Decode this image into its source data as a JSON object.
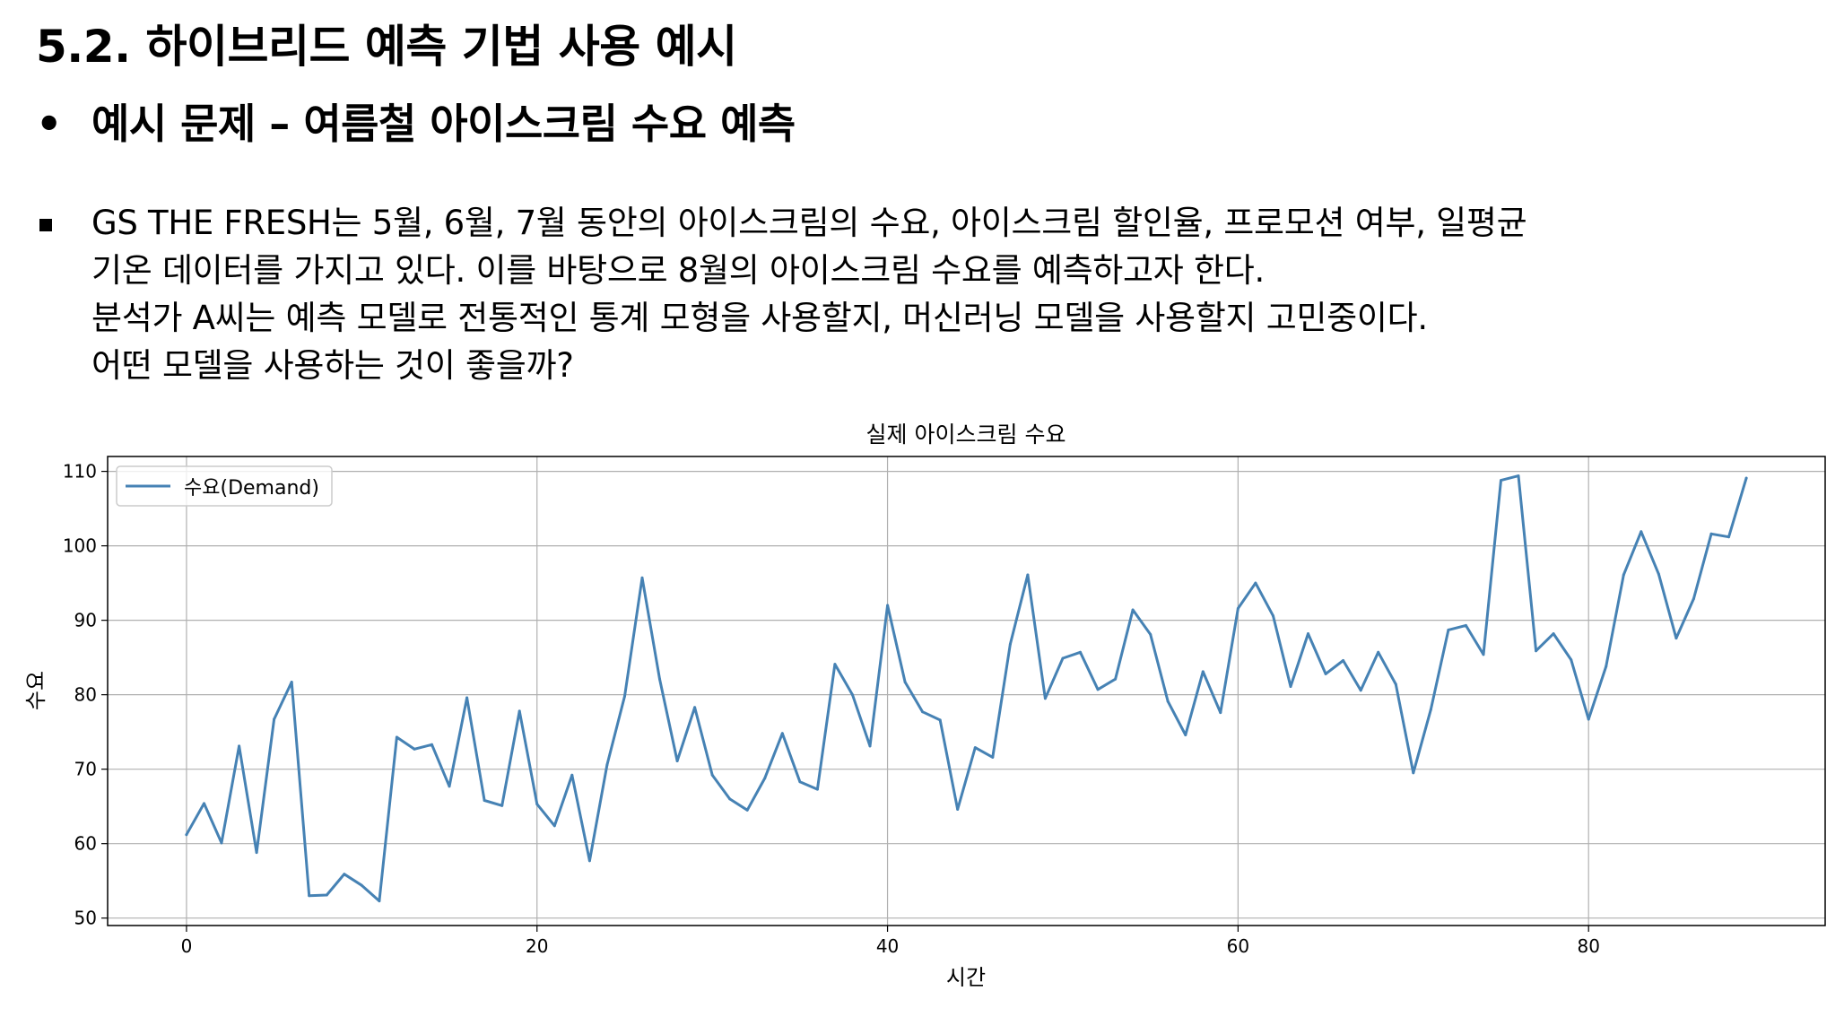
{
  "header": {
    "section_title": "5.2. 하이브리드 예측 기법 사용 예시",
    "bullet_title": "예시 문제 – 여름철 아이스크림 수요 예측"
  },
  "problem": {
    "lines": [
      "GS THE FRESH는 5월, 6월, 7월 동안의 아이스크림의 수요, 아이스크림 할인율, 프로모션 여부, 일평균",
      "기온 데이터를 가지고 있다. 이를 바탕으로 8월의 아이스크림 수요를 예측하고자 한다.",
      "분석가 A씨는 예측 모델로 전통적인 통계 모형을 사용할지, 머신러닝 모델을 사용할지 고민중이다.",
      "어떤 모델을 사용하는 것이 좋을까?"
    ]
  },
  "colors": {
    "line": "#4682b4",
    "grid": "#b0b0b0"
  },
  "chart_data": {
    "type": "line",
    "title": "실제 아이스크림 수요",
    "xlabel": "시간",
    "ylabel": "수요",
    "xlim": [
      -4.5,
      93.5
    ],
    "ylim": [
      49,
      112
    ],
    "xticks": [
      0,
      20,
      40,
      60,
      80
    ],
    "yticks": [
      50,
      60,
      70,
      80,
      90,
      100,
      110
    ],
    "grid": true,
    "legend": "top-left",
    "series": [
      {
        "name": "수요(Demand)",
        "color": "#4682b4",
        "values": [
          61.2,
          65.4,
          60.1,
          73.1,
          58.8,
          76.7,
          81.7,
          53.0,
          53.1,
          55.9,
          54.4,
          52.3,
          74.3,
          72.7,
          73.3,
          67.7,
          79.6,
          65.8,
          65.1,
          77.8,
          65.3,
          62.4,
          69.2,
          57.7,
          70.6,
          79.8,
          95.7,
          82.1,
          71.1,
          78.3,
          69.2,
          66.0,
          64.5,
          68.8,
          74.8,
          68.3,
          67.3,
          84.1,
          80.0,
          73.1,
          92.0,
          81.7,
          77.7,
          76.6,
          64.6,
          72.9,
          71.6,
          86.8,
          96.1,
          79.5,
          84.9,
          85.7,
          80.7,
          82.1,
          91.4,
          88.1,
          79.1,
          74.6,
          83.1,
          77.6,
          91.6,
          95.0,
          90.6,
          81.1,
          88.2,
          82.8,
          84.6,
          80.6,
          85.7,
          81.4,
          69.5,
          78.0,
          88.7,
          89.3,
          85.4,
          108.8,
          109.4,
          85.9,
          88.2,
          84.7,
          76.7,
          83.8,
          96.1,
          101.9,
          96.2,
          87.6,
          92.9,
          101.6,
          101.2,
          109.1
        ]
      }
    ]
  }
}
